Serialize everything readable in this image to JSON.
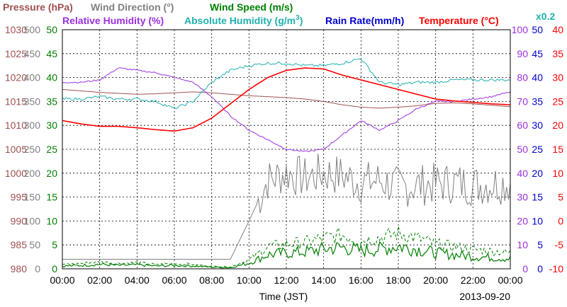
{
  "chart_data": {
    "type": "line",
    "legend": {
      "row1": [
        {
          "text": "Pressure (hPa)",
          "color": "#a05050"
        },
        {
          "text": "Wind Direction (°)",
          "color": "#808080"
        },
        {
          "text": "Wind Speed (m/s)",
          "color": "#008000"
        }
      ],
      "row2": [
        {
          "text": "Relative Humidity (%)",
          "color": "#9b30e0"
        },
        {
          "text": "Absolute Humidity (g/m",
          "sup": "3",
          "tail": ")",
          "color": "#20b0b0"
        },
        {
          "text": "Rain Rate(mm/h)",
          "color": "#0000d0"
        },
        {
          "text": "Temperature (°C)",
          "color": "#ff0000"
        }
      ],
      "note": {
        "text": "x0.2",
        "color": "#20b0b0"
      }
    },
    "xlabel": "Time (JST)",
    "date": "2013-09-20",
    "x_ticks": [
      "00:00",
      "02:00",
      "04:00",
      "06:00",
      "08:00",
      "10:00",
      "12:00",
      "14:00",
      "16:00",
      "18:00",
      "20:00",
      "22:00",
      "00:00"
    ],
    "left_axes": [
      {
        "name": "Pressure (hPa)",
        "color": "#a05050",
        "ylim": [
          980,
          1030
        ],
        "ticks": [
          980,
          985,
          990,
          995,
          1000,
          1005,
          1010,
          1015,
          1020,
          1025,
          1030
        ]
      },
      {
        "name": "Wind Direction (°)",
        "color": "#808080",
        "ylim": [
          0,
          500
        ],
        "ticks": [
          0,
          50,
          100,
          150,
          200,
          250,
          300,
          350,
          400,
          450,
          500
        ]
      },
      {
        "name": "Wind Speed (m/s)",
        "color": "#008000",
        "ylim": [
          0,
          50
        ],
        "ticks": [
          0,
          5,
          10,
          15,
          20,
          25,
          30,
          35,
          40,
          45,
          50
        ]
      }
    ],
    "right_axes": [
      {
        "name": "Relative Humidity (%)",
        "color": "#9b30e0",
        "ylim": [
          0,
          100
        ],
        "ticks": [
          0,
          10,
          20,
          30,
          40,
          50,
          60,
          70,
          80,
          90,
          100
        ]
      },
      {
        "name": "Rain Rate(mm/h)",
        "color": "#0000d0",
        "ylim": [
          0,
          50
        ],
        "ticks": [
          0,
          5,
          10,
          15,
          20,
          25,
          30,
          35,
          40,
          45,
          50
        ]
      },
      {
        "name": "Temperature (°C)",
        "color": "#ff0000",
        "ylim": [
          -10,
          40
        ],
        "ticks": [
          -10,
          -5,
          0,
          5,
          10,
          15,
          20,
          25,
          30,
          35,
          40
        ]
      }
    ],
    "x_hours": [
      0,
      1,
      2,
      3,
      4,
      5,
      6,
      7,
      8,
      9,
      10,
      11,
      12,
      13,
      14,
      15,
      16,
      17,
      18,
      19,
      20,
      21,
      22,
      23,
      24
    ],
    "series": [
      {
        "name": "Pressure (hPa)",
        "color": "#a05050",
        "axis": "left0",
        "values": [
          1017.5,
          1017.2,
          1016.9,
          1016.7,
          1016.5,
          1016.6,
          1016.8,
          1017.0,
          1016.8,
          1016.5,
          1016.2,
          1016.0,
          1015.8,
          1015.5,
          1015.0,
          1014.3,
          1013.8,
          1013.6,
          1013.8,
          1014.1,
          1014.6,
          1014.7,
          1014.5,
          1014.2,
          1013.9
        ]
      },
      {
        "name": "Wind Direction (°)",
        "color": "#808080",
        "axis": "left1",
        "values": [
          20,
          20,
          20,
          20,
          20,
          20,
          20,
          20,
          20,
          20,
          100,
          185,
          200,
          190,
          200,
          195,
          180,
          185,
          170,
          175,
          178,
          180,
          175,
          178,
          180
        ]
      },
      {
        "name": "Wind Speed (m/s)",
        "color": "#008000",
        "axis": "left2",
        "values": [
          0.5,
          0.6,
          0.8,
          0.6,
          0.7,
          0.5,
          0.6,
          0.5,
          0.3,
          0.2,
          1.0,
          2.5,
          2.8,
          3.0,
          3.5,
          3.8,
          3.2,
          3.5,
          4.0,
          3.5,
          2.8,
          2.5,
          2.2,
          2.0,
          1.8
        ]
      },
      {
        "name": "Relative Humidity (%)",
        "color": "#9b30e0",
        "axis": "right0",
        "values": [
          78,
          78,
          79,
          84,
          83,
          82,
          80,
          78,
          72,
          64,
          58,
          54,
          50,
          49,
          50,
          56,
          62,
          58,
          62,
          67,
          70,
          70,
          71,
          72,
          74
        ]
      },
      {
        "name": "Absolute Humidity (g/m³) x0.2",
        "color": "#20b0b0",
        "axis": "right0",
        "values": [
          71,
          71,
          72,
          71,
          71,
          70,
          67,
          70,
          78,
          83,
          85,
          86,
          86,
          85,
          85,
          86,
          88,
          78,
          77,
          78,
          78,
          79,
          79,
          79,
          79
        ]
      },
      {
        "name": "Rain Rate(mm/h)",
        "color": "#0000d0",
        "axis": "right1",
        "values": [
          0,
          0,
          0,
          0,
          0,
          0,
          0,
          0,
          0,
          0,
          0,
          0,
          0,
          0,
          0,
          0,
          0,
          0,
          0,
          0,
          0,
          0,
          0,
          0,
          0
        ]
      },
      {
        "name": "Temperature (°C)",
        "color": "#ff0000",
        "axis": "right2",
        "values": [
          21.0,
          20.3,
          19.8,
          19.8,
          19.5,
          19.1,
          18.8,
          19.5,
          21.5,
          24.5,
          27.5,
          30.0,
          31.5,
          32.0,
          31.8,
          30.5,
          29.5,
          28.5,
          27.5,
          26.5,
          25.5,
          25.1,
          24.8,
          24.5,
          24.3
        ]
      }
    ],
    "grid": true
  }
}
